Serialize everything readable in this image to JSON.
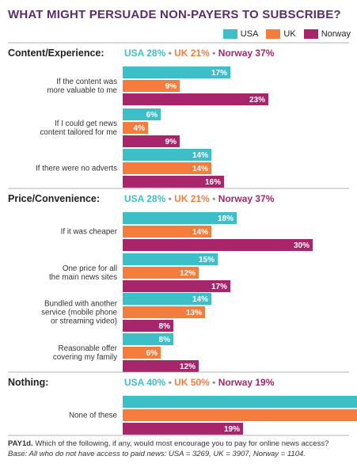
{
  "title": "WHAT MIGHT PERSUADE NON-PAYERS TO SUBSCRIBE?",
  "colors": {
    "USA": "#3cbfc6",
    "UK": "#f47c3c",
    "Norway": "#a6256b",
    "header": "#222222",
    "section_line": "#888888"
  },
  "chart_data": {
    "type": "bar",
    "orientation": "horizontal",
    "legend": {
      "placement": "top-right",
      "entries": [
        "USA",
        "UK",
        "Norway"
      ]
    },
    "sections": [
      {
        "name": "Content/Experience:",
        "summary": [
          {
            "label": "USA 28%",
            "color": "USA"
          },
          {
            "label": "UK 21%",
            "color": "UK"
          },
          {
            "label": "Norway 37%",
            "color": "Norway"
          }
        ],
        "categories": [
          {
            "label": [
              "If the content was",
              "more valuable to me"
            ],
            "values": [
              17,
              9,
              23
            ]
          },
          {
            "label": [
              "If I could get news",
              "content tailored for me"
            ],
            "values": [
              6,
              4,
              9
            ]
          },
          {
            "label": [
              "If there were no adverts"
            ],
            "values": [
              14,
              14,
              16
            ]
          }
        ]
      },
      {
        "name": "Price/Convenience:",
        "summary": [
          {
            "label": "USA 28%",
            "color": "USA"
          },
          {
            "label": "UK 21%",
            "color": "UK"
          },
          {
            "label": "Norway 37%",
            "color": "Norway"
          }
        ],
        "categories": [
          {
            "label": [
              "If it was cheaper"
            ],
            "values": [
              18,
              14,
              30
            ]
          },
          {
            "label": [
              "One price for all",
              "the main news sites"
            ],
            "values": [
              15,
              12,
              17
            ]
          },
          {
            "label": [
              "Bundled with another",
              "service (mobile phone",
              "or streaming video)"
            ],
            "values": [
              14,
              13,
              8
            ]
          },
          {
            "label": [
              "Reasonable offer",
              "covering my family"
            ],
            "values": [
              8,
              6,
              12
            ]
          }
        ]
      },
      {
        "name": "Nothing:",
        "summary": [
          {
            "label": "USA 40%",
            "color": "USA"
          },
          {
            "label": "UK 50%",
            "color": "UK"
          },
          {
            "label": "Norway 19%",
            "color": "Norway"
          }
        ],
        "categories": [
          {
            "label": [
              "None of these"
            ],
            "values": [
              40,
              50,
              19
            ]
          }
        ]
      }
    ]
  },
  "footnote": {
    "question": "PAY1d.",
    "question_text": " Which of the following, if any, would most encourage you to pay for online news access?",
    "base": "Base: All who do not have access to paid news: USA = 3269, UK = 3907, Norway = 1104."
  }
}
